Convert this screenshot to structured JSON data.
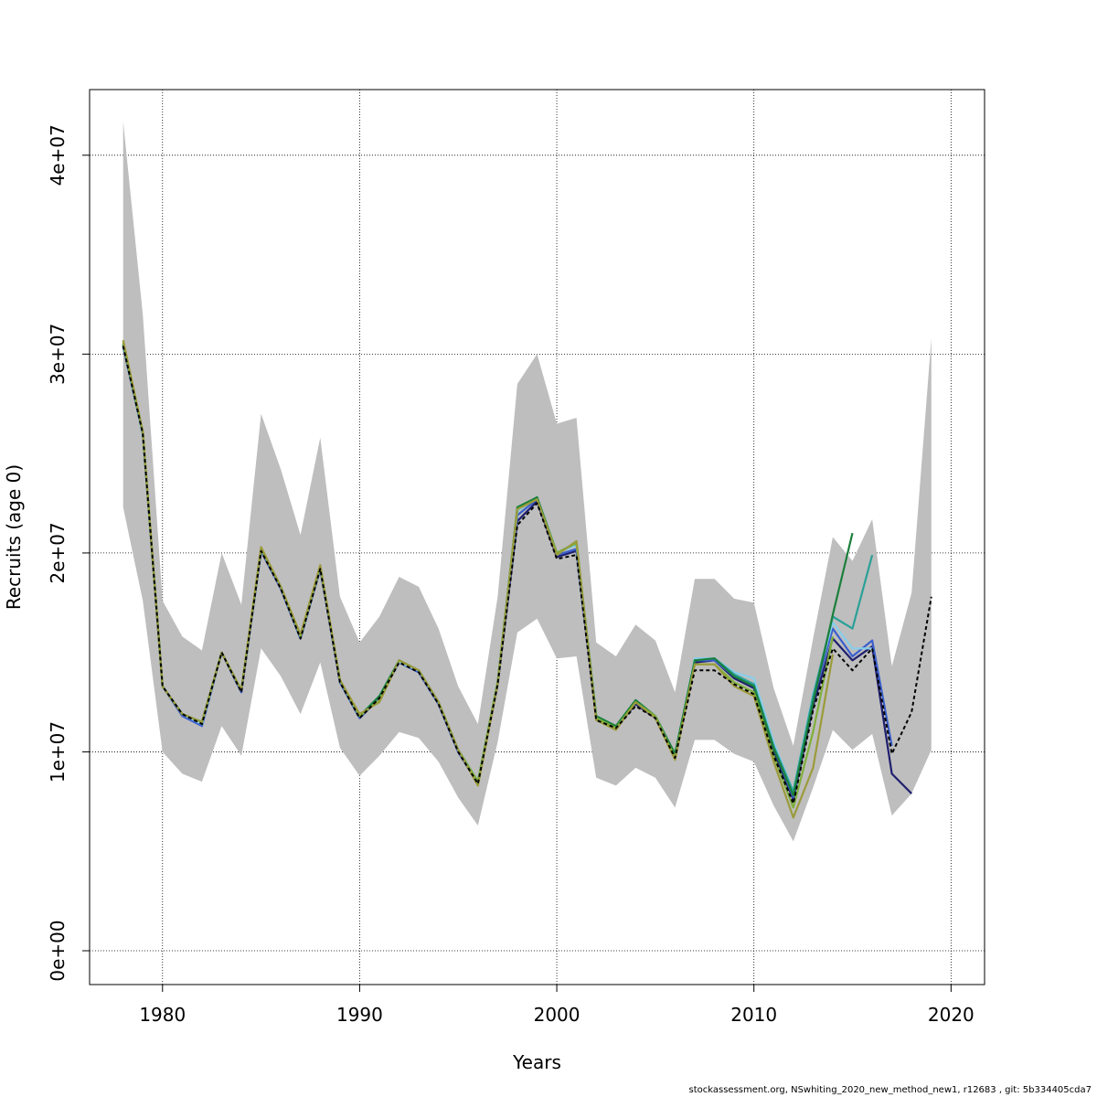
{
  "chart_data": {
    "type": "line",
    "xlabel": "Years",
    "ylabel": "Recruits (age 0)",
    "xlim": [
      1976.3,
      2021.7
    ],
    "ylim": [
      -1700000,
      43300000
    ],
    "x_ticks": [
      1980,
      1990,
      2000,
      2010,
      2020
    ],
    "x_tick_labels": [
      "1980",
      "1990",
      "2000",
      "2010",
      "2020"
    ],
    "y_ticks": [
      0,
      10000000,
      20000000,
      30000000,
      40000000
    ],
    "y_tick_labels": [
      "0e+00",
      "1e+07",
      "2e+07",
      "3e+07",
      "4e+07"
    ],
    "grid": true,
    "band": {
      "color": "#bebebe",
      "x": [
        1978,
        1979,
        1980,
        1981,
        1982,
        1983,
        1984,
        1985,
        1986,
        1987,
        1988,
        1989,
        1990,
        1991,
        1992,
        1993,
        1994,
        1995,
        1996,
        1997,
        1998,
        1999,
        2000,
        2001,
        2002,
        2003,
        2004,
        2005,
        2006,
        2007,
        2008,
        2009,
        2010,
        2011,
        2012,
        2013,
        2014,
        2015,
        2016,
        2017,
        2018,
        2019
      ],
      "upper": [
        41700000,
        32000000,
        17600000,
        15800000,
        15100000,
        20000000,
        17400000,
        27000000,
        24200000,
        20900000,
        25800000,
        17800000,
        15500000,
        16800000,
        18800000,
        18300000,
        16200000,
        13300000,
        11400000,
        17800000,
        28500000,
        30000000,
        26500000,
        26800000,
        15500000,
        14800000,
        16400000,
        15600000,
        13000000,
        18700000,
        18700000,
        17700000,
        17500000,
        13200000,
        10300000,
        15700000,
        20800000,
        19600000,
        21700000,
        14300000,
        18000000,
        30800000
      ],
      "lower": [
        22300000,
        17600000,
        10000000,
        8900000,
        8500000,
        11300000,
        9800000,
        15200000,
        13800000,
        11900000,
        14500000,
        10200000,
        8800000,
        9800000,
        11000000,
        10700000,
        9500000,
        7700000,
        6300000,
        10500000,
        16000000,
        16700000,
        14700000,
        14800000,
        8700000,
        8300000,
        9200000,
        8700000,
        7200000,
        10600000,
        10600000,
        9900000,
        9500000,
        7300000,
        5500000,
        8200000,
        11100000,
        10100000,
        10900000,
        6800000,
        7900000,
        10100000
      ]
    },
    "series": [
      {
        "color": "#000000",
        "dashed": true,
        "x": [
          1978,
          1979,
          1980,
          1981,
          1982,
          1983,
          1984,
          1985,
          1986,
          1987,
          1988,
          1989,
          1990,
          1991,
          1992,
          1993,
          1994,
          1995,
          1996,
          1997,
          1998,
          1999,
          2000,
          2001,
          2002,
          2003,
          2004,
          2005,
          2006,
          2007,
          2008,
          2009,
          2010,
          2011,
          2012,
          2013,
          2014,
          2015,
          2016,
          2017,
          2018,
          2019
        ],
        "values": [
          30400000,
          26000000,
          13300000,
          11900000,
          11400000,
          15000000,
          13000000,
          20100000,
          18200000,
          15700000,
          19200000,
          13500000,
          11700000,
          12700000,
          14500000,
          14000000,
          12400000,
          10000000,
          8400000,
          13400000,
          21400000,
          22500000,
          19700000,
          19900000,
          11600000,
          11200000,
          12300000,
          11700000,
          9700000,
          14100000,
          14100000,
          13400000,
          12900000,
          9800000,
          7400000,
          12100000,
          15200000,
          14100000,
          15200000,
          9900000,
          12000000,
          17800000
        ]
      },
      {
        "color": "#1f1f6f",
        "x": [
          1978,
          1979,
          1980,
          1981,
          1982,
          1983,
          1984,
          1985,
          1986,
          1987,
          1988,
          1989,
          1990,
          1991,
          1992,
          1993,
          1994,
          1995,
          1996,
          1997,
          1998,
          1999,
          2000,
          2001,
          2002,
          2003,
          2004,
          2005,
          2006,
          2007,
          2008,
          2009,
          2010,
          2011,
          2012,
          2013,
          2014,
          2015,
          2016,
          2017,
          2018
        ],
        "values": [
          30400000,
          26000000,
          13300000,
          11900000,
          11400000,
          15000000,
          13000000,
          20100000,
          18200000,
          15700000,
          19200000,
          13500000,
          11700000,
          12700000,
          14500000,
          14000000,
          12400000,
          10000000,
          8400000,
          13400000,
          21600000,
          22600000,
          19800000,
          20100000,
          11700000,
          11200000,
          12400000,
          11700000,
          9700000,
          14500000,
          14600000,
          13700000,
          13200000,
          10000000,
          7600000,
          12300000,
          15700000,
          14600000,
          15300000,
          8900000,
          7900000
        ]
      },
      {
        "color": "#3a5fcd",
        "x": [
          1978,
          1979,
          1980,
          1981,
          1982,
          1983,
          1984,
          1985,
          1986,
          1987,
          1988,
          1989,
          1990,
          1991,
          1992,
          1993,
          1994,
          1995,
          1996,
          1997,
          1998,
          1999,
          2000,
          2001,
          2002,
          2003,
          2004,
          2005,
          2006,
          2007,
          2008,
          2009,
          2010,
          2011,
          2012,
          2013,
          2014,
          2015,
          2016,
          2017
        ],
        "values": [
          30400000,
          26000000,
          13300000,
          11800000,
          11300000,
          15000000,
          13000000,
          20100000,
          18200000,
          15700000,
          19200000,
          13500000,
          11700000,
          12700000,
          14500000,
          14000000,
          12400000,
          10000000,
          8400000,
          13400000,
          21900000,
          22700000,
          19900000,
          20200000,
          11700000,
          11200000,
          12500000,
          11800000,
          9800000,
          14600000,
          14600000,
          13800000,
          13400000,
          10200000,
          7700000,
          12600000,
          16200000,
          14800000,
          15600000,
          10300000
        ]
      },
      {
        "color": "#87ceeb",
        "x": [
          1978,
          1979,
          1980,
          1981,
          1982,
          1983,
          1984,
          1985,
          1986,
          1987,
          1988,
          1989,
          1990,
          1991,
          1992,
          1993,
          1994,
          1995,
          1996,
          1997,
          1998,
          1999,
          2000,
          2001,
          2002,
          2003,
          2004,
          2005,
          2006,
          2007,
          2008,
          2009,
          2010,
          2011,
          2012,
          2013,
          2014,
          2015,
          2016
        ],
        "values": [
          30500000,
          26000000,
          13300000,
          11900000,
          11400000,
          15000000,
          13100000,
          20200000,
          18300000,
          15800000,
          19300000,
          13600000,
          11800000,
          12800000,
          14500000,
          14100000,
          12500000,
          10100000,
          8500000,
          13500000,
          22100000,
          22800000,
          20000000,
          20400000,
          11800000,
          11200000,
          12500000,
          11800000,
          9800000,
          14700000,
          14700000,
          14000000,
          13700000,
          10500000,
          8000000,
          12900000,
          16500000,
          15200000,
          15200000
        ]
      },
      {
        "color": "#2aa198",
        "x": [
          1978,
          1979,
          1980,
          1981,
          1982,
          1983,
          1984,
          1985,
          1986,
          1987,
          1988,
          1989,
          1990,
          1991,
          1992,
          1993,
          1994,
          1995,
          1996,
          1997,
          1998,
          1999,
          2000,
          2001,
          2002,
          2003,
          2004,
          2005,
          2006,
          2007,
          2008,
          2009,
          2010,
          2011,
          2012,
          2013,
          2014,
          2015,
          2016
        ],
        "values": [
          30500000,
          26000000,
          13300000,
          11900000,
          11500000,
          15000000,
          13100000,
          20200000,
          18300000,
          15800000,
          19300000,
          13600000,
          11800000,
          12800000,
          14600000,
          14100000,
          12500000,
          10100000,
          8500000,
          13500000,
          22200000,
          22800000,
          20000000,
          20500000,
          11800000,
          11300000,
          12600000,
          11800000,
          9900000,
          14600000,
          14700000,
          13900000,
          13400000,
          10300000,
          8000000,
          12800000,
          16800000,
          16200000,
          19900000
        ]
      },
      {
        "color": "#1b7f3b",
        "x": [
          1978,
          1979,
          1980,
          1981,
          1982,
          1983,
          1984,
          1985,
          1986,
          1987,
          1988,
          1989,
          1990,
          1991,
          1992,
          1993,
          1994,
          1995,
          1996,
          1997,
          1998,
          1999,
          2000,
          2001,
          2002,
          2003,
          2004,
          2005,
          2006,
          2007,
          2008,
          2009,
          2010,
          2011,
          2012,
          2013,
          2014,
          2015
        ],
        "values": [
          30500000,
          26100000,
          13300000,
          11900000,
          11500000,
          15000000,
          13100000,
          20200000,
          18300000,
          15800000,
          19300000,
          13600000,
          11800000,
          12800000,
          14600000,
          14100000,
          12500000,
          10100000,
          8500000,
          13500000,
          22300000,
          22800000,
          20000000,
          20500000,
          11800000,
          11300000,
          12600000,
          11800000,
          9900000,
          14600000,
          14700000,
          13800000,
          13300000,
          10200000,
          7800000,
          12500000,
          16900000,
          21000000
        ]
      },
      {
        "color": "#7fb03a",
        "x": [
          1978,
          1979,
          1980,
          1981,
          1982,
          1983,
          1984,
          1985,
          1986,
          1987,
          1988,
          1989,
          1990,
          1991,
          1992,
          1993,
          1994,
          1995,
          1996,
          1997,
          1998,
          1999,
          2000,
          2001,
          2002,
          2003,
          2004,
          2005,
          2006,
          2007,
          2008,
          2009,
          2010,
          2011,
          2012,
          2013,
          2014
        ],
        "values": [
          30600000,
          26100000,
          13300000,
          11900000,
          11500000,
          15000000,
          13100000,
          20200000,
          18300000,
          15800000,
          19300000,
          13600000,
          11800000,
          12600000,
          14600000,
          14100000,
          12500000,
          10100000,
          8500000,
          13500000,
          22200000,
          22700000,
          20000000,
          20500000,
          11700000,
          11200000,
          12500000,
          11800000,
          9700000,
          14400000,
          14400000,
          13500000,
          13000000,
          9800000,
          7200000,
          11000000,
          15800000
        ]
      },
      {
        "color": "#9b9b3b",
        "x": [
          1978,
          1979,
          1980,
          1981,
          1982,
          1983,
          1984,
          1985,
          1986,
          1987,
          1988,
          1989,
          1990,
          1991,
          1992,
          1993,
          1994,
          1995,
          1996,
          1997,
          1998,
          1999,
          2000,
          2001,
          2002,
          2003,
          2004,
          2005,
          2006,
          2007,
          2008,
          2009,
          2010,
          2011,
          2012,
          2013,
          2014
        ],
        "values": [
          30700000,
          26100000,
          13300000,
          11900000,
          11500000,
          15000000,
          13100000,
          20300000,
          18300000,
          15900000,
          19400000,
          13600000,
          11900000,
          12500000,
          14600000,
          14100000,
          12500000,
          10100000,
          8300000,
          13400000,
          22200000,
          22700000,
          19900000,
          20600000,
          11600000,
          11100000,
          12500000,
          11700000,
          9600000,
          14400000,
          14400000,
          13300000,
          12800000,
          9500000,
          6700000,
          9200000,
          14900000
        ]
      }
    ]
  },
  "footer": "stockassessment.org, NSwhiting_2020_new_method_new1, r12683 , git: 5b334405cda7"
}
